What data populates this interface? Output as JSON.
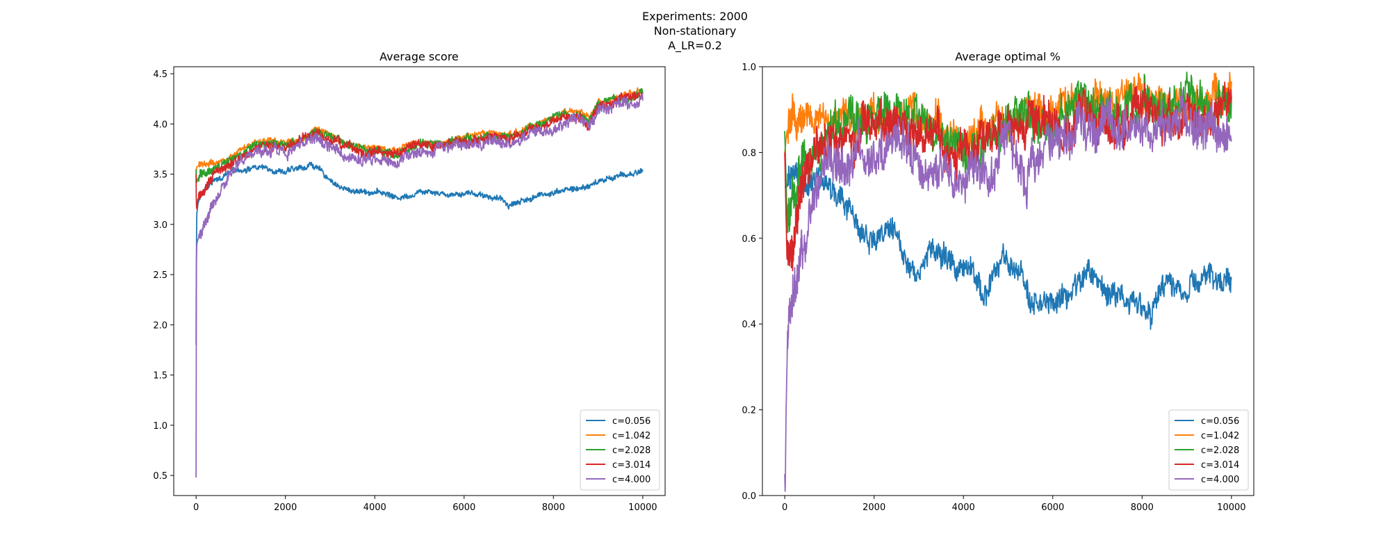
{
  "suptitle": [
    "Experiments: 2000",
    "Non-stationary",
    "A_LR=0.2"
  ],
  "chart_data": [
    {
      "type": "line",
      "title": "Average score",
      "xlabel": "",
      "ylabel": "",
      "xlim": [
        -500,
        10500
      ],
      "ylim": [
        0.3,
        4.57
      ],
      "xticks": [
        0,
        2000,
        4000,
        6000,
        8000,
        10000
      ],
      "xtick_labels": [
        "0",
        "2000",
        "4000",
        "6000",
        "8000",
        "10000"
      ],
      "yticks": [
        0.5,
        1.0,
        1.5,
        2.0,
        2.5,
        3.0,
        3.5,
        4.0,
        4.5
      ],
      "ytick_labels": [
        "0.5",
        "1.0",
        "1.5",
        "2.0",
        "2.5",
        "3.0",
        "3.5",
        "4.0",
        "4.5"
      ],
      "grid": false,
      "legend_position": "lower right",
      "series": [
        {
          "name": "c=0.056",
          "color": "#1f77b4",
          "noise": 0.03,
          "x": [
            0,
            5,
            15,
            40,
            100,
            200,
            400,
            700,
            1000,
            1300,
            1600,
            2000,
            2300,
            2600,
            2800,
            3000,
            3300,
            3600,
            4000,
            4300,
            4500,
            4800,
            5200,
            5600,
            6000,
            6400,
            6800,
            7000,
            7400,
            7800,
            8200,
            8600,
            9000,
            9400,
            9800,
            10000
          ],
          "y": [
            1.8,
            2.6,
            3.1,
            3.2,
            3.3,
            3.35,
            3.42,
            3.5,
            3.55,
            3.57,
            3.56,
            3.53,
            3.55,
            3.6,
            3.52,
            3.45,
            3.35,
            3.33,
            3.33,
            3.3,
            3.26,
            3.3,
            3.35,
            3.3,
            3.32,
            3.3,
            3.25,
            3.2,
            3.25,
            3.3,
            3.35,
            3.35,
            3.42,
            3.48,
            3.5,
            3.55
          ]
        },
        {
          "name": "c=1.042",
          "color": "#ff7f0e",
          "noise": 0.03,
          "x": [
            0,
            5,
            15,
            40,
            100,
            200,
            400,
            700,
            1000,
            1300,
            1600,
            2000,
            2300,
            2700,
            3000,
            3300,
            3600,
            4000,
            4400,
            4700,
            5000,
            5400,
            5800,
            6200,
            6600,
            7000,
            7400,
            7800,
            8200,
            8600,
            8800,
            9000,
            9400,
            9800,
            10000
          ],
          "y": [
            3.5,
            3.55,
            3.57,
            3.58,
            3.6,
            3.6,
            3.62,
            3.66,
            3.72,
            3.8,
            3.82,
            3.82,
            3.85,
            3.95,
            3.88,
            3.82,
            3.78,
            3.76,
            3.72,
            3.78,
            3.82,
            3.82,
            3.85,
            3.88,
            3.9,
            3.88,
            3.95,
            4.02,
            4.1,
            4.12,
            4.06,
            4.22,
            4.26,
            4.3,
            4.34
          ]
        },
        {
          "name": "c=2.028",
          "color": "#2ca02c",
          "noise": 0.04,
          "x": [
            0,
            5,
            15,
            40,
            100,
            200,
            400,
            700,
            1000,
            1300,
            1600,
            2000,
            2300,
            2700,
            3000,
            3300,
            3600,
            4000,
            4400,
            4700,
            5000,
            5400,
            5800,
            6200,
            6600,
            7000,
            7400,
            7800,
            8200,
            8600,
            8800,
            9000,
            9400,
            9800,
            10000
          ],
          "y": [
            3.55,
            3.45,
            3.42,
            3.45,
            3.5,
            3.52,
            3.56,
            3.62,
            3.7,
            3.78,
            3.8,
            3.8,
            3.83,
            3.93,
            3.86,
            3.8,
            3.76,
            3.74,
            3.7,
            3.76,
            3.8,
            3.8,
            3.83,
            3.86,
            3.88,
            3.86,
            3.93,
            4.0,
            4.08,
            4.1,
            4.04,
            4.2,
            4.24,
            4.28,
            4.32
          ]
        },
        {
          "name": "c=3.014",
          "color": "#d62728",
          "noise": 0.05,
          "x": [
            0,
            5,
            15,
            40,
            100,
            200,
            400,
            700,
            1000,
            1300,
            1600,
            2000,
            2300,
            2700,
            3000,
            3300,
            3600,
            4000,
            4400,
            4700,
            5000,
            5400,
            5800,
            6200,
            6600,
            7000,
            7400,
            7800,
            8200,
            8600,
            8800,
            9000,
            9400,
            9800,
            10000
          ],
          "y": [
            3.5,
            3.2,
            3.15,
            3.25,
            3.3,
            3.38,
            3.48,
            3.58,
            3.68,
            3.76,
            3.78,
            3.78,
            3.8,
            3.9,
            3.84,
            3.78,
            3.74,
            3.72,
            3.68,
            3.74,
            3.78,
            3.78,
            3.81,
            3.84,
            3.86,
            3.84,
            3.91,
            3.98,
            4.06,
            4.08,
            4.02,
            4.18,
            4.22,
            4.26,
            4.3
          ]
        },
        {
          "name": "c=4.000",
          "color": "#9467bd",
          "noise": 0.06,
          "x": [
            0,
            3,
            8,
            15,
            40,
            100,
            200,
            400,
            700,
            1000,
            1300,
            1600,
            2000,
            2300,
            2700,
            3000,
            3300,
            3600,
            4000,
            4400,
            4700,
            5000,
            5400,
            5800,
            6200,
            6600,
            7000,
            7400,
            7800,
            8200,
            8600,
            8800,
            9000,
            9400,
            9800,
            10000
          ],
          "y": [
            0.48,
            1.5,
            2.6,
            2.8,
            2.85,
            2.9,
            3.0,
            3.2,
            3.45,
            3.62,
            3.7,
            3.73,
            3.74,
            3.76,
            3.86,
            3.78,
            3.7,
            3.65,
            3.66,
            3.62,
            3.7,
            3.72,
            3.74,
            3.77,
            3.8,
            3.82,
            3.8,
            3.87,
            3.94,
            4.02,
            4.05,
            3.99,
            4.14,
            4.18,
            4.22,
            4.26
          ]
        }
      ]
    },
    {
      "type": "line",
      "title": "Average optimal %",
      "xlabel": "",
      "ylabel": "",
      "xlim": [
        -500,
        10500
      ],
      "ylim": [
        0.0,
        1.0
      ],
      "xticks": [
        0,
        2000,
        4000,
        6000,
        8000,
        10000
      ],
      "xtick_labels": [
        "0",
        "2000",
        "4000",
        "6000",
        "8000",
        "10000"
      ],
      "yticks": [
        0.0,
        0.2,
        0.4,
        0.6,
        0.8,
        1.0
      ],
      "ytick_labels": [
        "0.0",
        "0.2",
        "0.4",
        "0.6",
        "0.8",
        "1.0"
      ],
      "grid": false,
      "legend_position": "lower right",
      "series": [
        {
          "name": "c=0.056",
          "color": "#1f77b4",
          "noise": 0.03,
          "x": [
            0,
            50,
            150,
            300,
            600,
            900,
            1100,
            1400,
            1700,
            2000,
            2300,
            2600,
            2800,
            3000,
            3300,
            3600,
            4000,
            4300,
            4500,
            4700,
            4900,
            5200,
            5500,
            5700,
            6000,
            6400,
            6800,
            7200,
            7600,
            8000,
            8200,
            8600,
            9000,
            9400,
            9800,
            10000
          ],
          "y": [
            0.72,
            0.72,
            0.75,
            0.74,
            0.72,
            0.72,
            0.7,
            0.66,
            0.62,
            0.6,
            0.63,
            0.58,
            0.55,
            0.53,
            0.58,
            0.55,
            0.52,
            0.5,
            0.47,
            0.52,
            0.55,
            0.5,
            0.47,
            0.44,
            0.44,
            0.47,
            0.52,
            0.48,
            0.47,
            0.45,
            0.42,
            0.5,
            0.47,
            0.5,
            0.5,
            0.49
          ]
        },
        {
          "name": "c=1.042",
          "color": "#ff7f0e",
          "noise": 0.04,
          "x": [
            0,
            50,
            150,
            300,
            600,
            1000,
            1500,
            2000,
            2500,
            3000,
            3500,
            4000,
            4500,
            5000,
            5500,
            6000,
            6500,
            7000,
            7500,
            8000,
            8500,
            9000,
            9500,
            10000
          ],
          "y": [
            0.8,
            0.85,
            0.87,
            0.88,
            0.87,
            0.88,
            0.88,
            0.88,
            0.88,
            0.87,
            0.86,
            0.83,
            0.86,
            0.87,
            0.88,
            0.92,
            0.9,
            0.92,
            0.93,
            0.92,
            0.9,
            0.92,
            0.92,
            0.92
          ]
        },
        {
          "name": "c=2.028",
          "color": "#2ca02c",
          "noise": 0.05,
          "x": [
            0,
            50,
            150,
            300,
            600,
            1000,
            1500,
            2000,
            2500,
            3000,
            3500,
            4000,
            4500,
            5000,
            5500,
            6000,
            6500,
            7000,
            7500,
            8000,
            8500,
            9000,
            9500,
            10000
          ],
          "y": [
            0.85,
            0.65,
            0.7,
            0.75,
            0.8,
            0.86,
            0.87,
            0.88,
            0.88,
            0.86,
            0.84,
            0.8,
            0.84,
            0.86,
            0.87,
            0.9,
            0.9,
            0.91,
            0.9,
            0.9,
            0.9,
            0.92,
            0.9,
            0.91
          ]
        },
        {
          "name": "c=3.014",
          "color": "#d62728",
          "noise": 0.05,
          "x": [
            0,
            50,
            150,
            300,
            600,
            1000,
            1500,
            2000,
            2500,
            3000,
            3500,
            4000,
            4500,
            5000,
            5500,
            6000,
            6500,
            7000,
            7500,
            8000,
            8500,
            9000,
            9500,
            10000
          ],
          "y": [
            0.8,
            0.55,
            0.6,
            0.68,
            0.76,
            0.82,
            0.84,
            0.84,
            0.86,
            0.85,
            0.82,
            0.8,
            0.83,
            0.85,
            0.86,
            0.88,
            0.88,
            0.89,
            0.88,
            0.88,
            0.88,
            0.9,
            0.88,
            0.9
          ]
        },
        {
          "name": "c=4.000",
          "color": "#9467bd",
          "noise": 0.05,
          "x": [
            0,
            10,
            30,
            60,
            100,
            150,
            250,
            400,
            600,
            800,
            1000,
            1500,
            2000,
            2500,
            3000,
            3500,
            4000,
            4500,
            5000,
            5400,
            5500,
            6000,
            6500,
            7000,
            7500,
            8000,
            8500,
            9000,
            9500,
            10000
          ],
          "y": [
            0.05,
            0.0,
            0.2,
            0.35,
            0.4,
            0.42,
            0.48,
            0.55,
            0.65,
            0.72,
            0.76,
            0.78,
            0.8,
            0.8,
            0.79,
            0.77,
            0.74,
            0.78,
            0.8,
            0.72,
            0.78,
            0.82,
            0.84,
            0.85,
            0.84,
            0.86,
            0.85,
            0.87,
            0.86,
            0.86
          ]
        }
      ]
    }
  ]
}
